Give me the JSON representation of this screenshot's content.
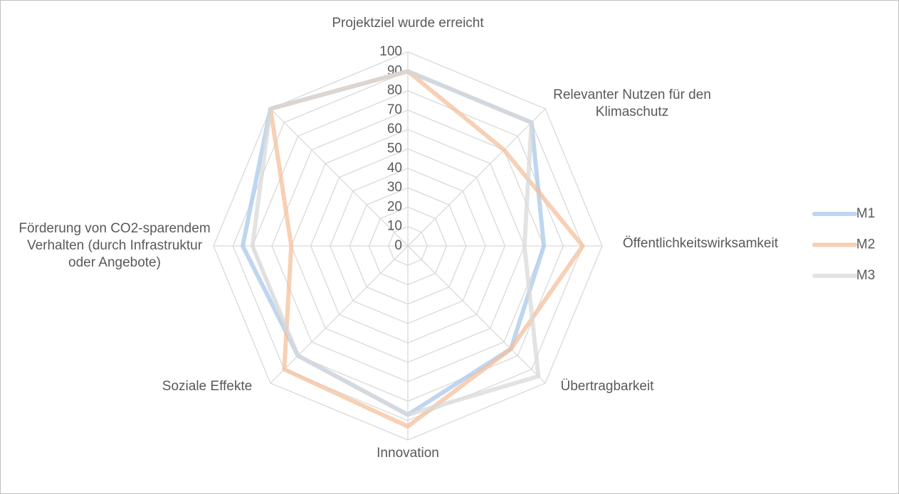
{
  "chart_data": {
    "type": "radar",
    "categories": [
      "Projektziel wurde erreicht",
      "Relevanter Nutzen für den Klimaschutz",
      "Öffentlichkeitswirksamkeit",
      "Übertragbarkeit",
      "Innovation",
      "Soziale Effekte",
      "Förderung von CO2-sparendem Verhalten (durch Infrastruktur oder Angebote)",
      null
    ],
    "series": [
      {
        "name": "M1",
        "color": "#a9c8eb",
        "values": [
          90,
          90,
          70,
          75,
          87,
          80,
          85,
          100
        ]
      },
      {
        "name": "M2",
        "color": "#f4c09c",
        "values": [
          90,
          70,
          90,
          75,
          93,
          90,
          60,
          100
        ]
      },
      {
        "name": "M3",
        "color": "#d9d9d9",
        "values": [
          90,
          90,
          60,
          95,
          87,
          80,
          80,
          100
        ]
      }
    ],
    "ylim": [
      0,
      100
    ],
    "yticks": [
      0,
      10,
      20,
      30,
      40,
      50,
      60,
      70,
      80,
      90,
      100
    ],
    "grid": true,
    "legend": "right"
  }
}
